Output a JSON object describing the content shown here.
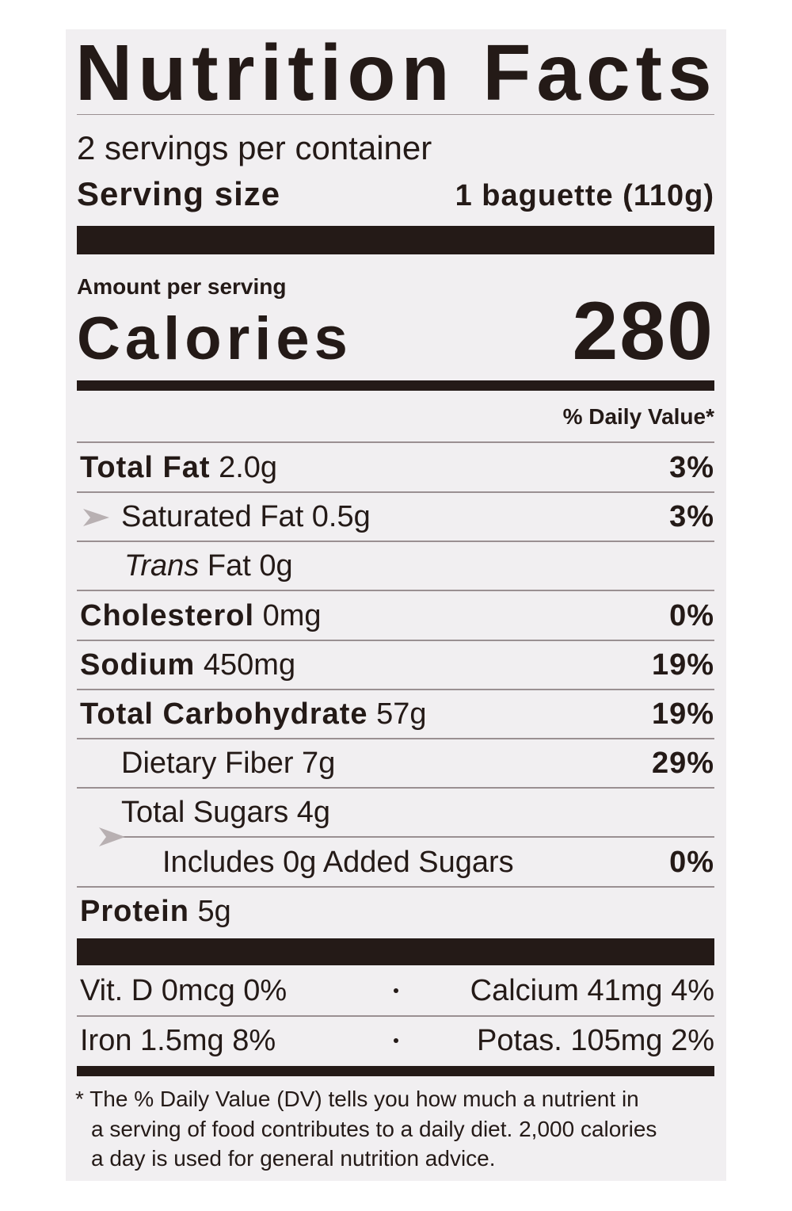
{
  "label": {
    "title": "Nutrition Facts",
    "servings": "2 servings per container",
    "serving_size_label": "Serving size",
    "serving_size_value": "1 baguette (110g)",
    "amount_per_serving": "Amount per serving",
    "calories_label": "Calories",
    "calories_value": "280",
    "daily_value_header": "% Daily Value*",
    "rows": [
      {
        "label": "Total Fat",
        "amount": "2.0g",
        "dv": "3%"
      },
      {
        "label": "Saturated Fat 0.5g",
        "dv": "3%"
      },
      {
        "label_italic": "Trans",
        "label": "Fat 0g"
      },
      {
        "label": "Cholesterol",
        "amount": "0mg",
        "dv": "0%"
      },
      {
        "label": "Sodium",
        "amount": "450mg",
        "dv": "19%"
      },
      {
        "label": "Total Carbohydrate",
        "amount": "57g",
        "dv": "19%"
      },
      {
        "label": "Dietary Fiber 7g",
        "dv": "29%"
      },
      {
        "label": "Total Sugars 4g"
      },
      {
        "label": "Includes 0g Added Sugars",
        "dv": "0%"
      },
      {
        "label": "Protein",
        "amount": "5g"
      }
    ],
    "vitamins": [
      [
        "Vit. D 0mcg 0%",
        "Calcium 41mg 4%"
      ],
      [
        "Iron 1.5mg 8%",
        "Potas. 105mg 2%"
      ]
    ],
    "footnote": [
      "* The % Daily Value (DV) tells you how much a nutrient in",
      "a serving of food contributes to a daily diet. 2,000 calories",
      "a day is used for general nutrition advice."
    ]
  }
}
